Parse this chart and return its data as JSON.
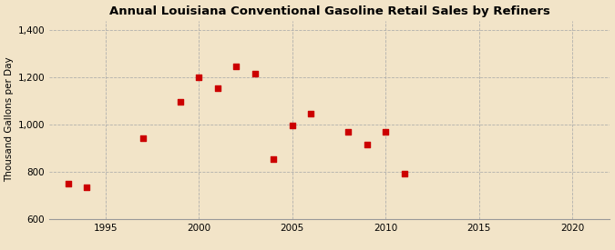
{
  "title": "Annual Louisiana Conventional Gasoline Retail Sales by Refiners",
  "ylabel": "Thousand Gallons per Day",
  "background_color": "#f2e4c8",
  "plot_bg_color": "#f2e4c8",
  "marker_color": "#cc0000",
  "marker_size": 18,
  "xlim": [
    1992,
    2022
  ],
  "ylim": [
    600,
    1440
  ],
  "xticks": [
    1995,
    2000,
    2005,
    2010,
    2015,
    2020
  ],
  "yticks": [
    600,
    800,
    1000,
    1200,
    1400
  ],
  "ytick_labels": [
    "600",
    "800",
    "1,000",
    "1,200",
    "1,400"
  ],
  "years": [
    1993,
    1994,
    1997,
    1999,
    2000,
    2001,
    2002,
    2003,
    2004,
    2005,
    2006,
    2008,
    2009,
    2010,
    2011
  ],
  "values": [
    750,
    735,
    940,
    1095,
    1200,
    1155,
    1245,
    1215,
    855,
    995,
    1045,
    970,
    915,
    970,
    790
  ]
}
